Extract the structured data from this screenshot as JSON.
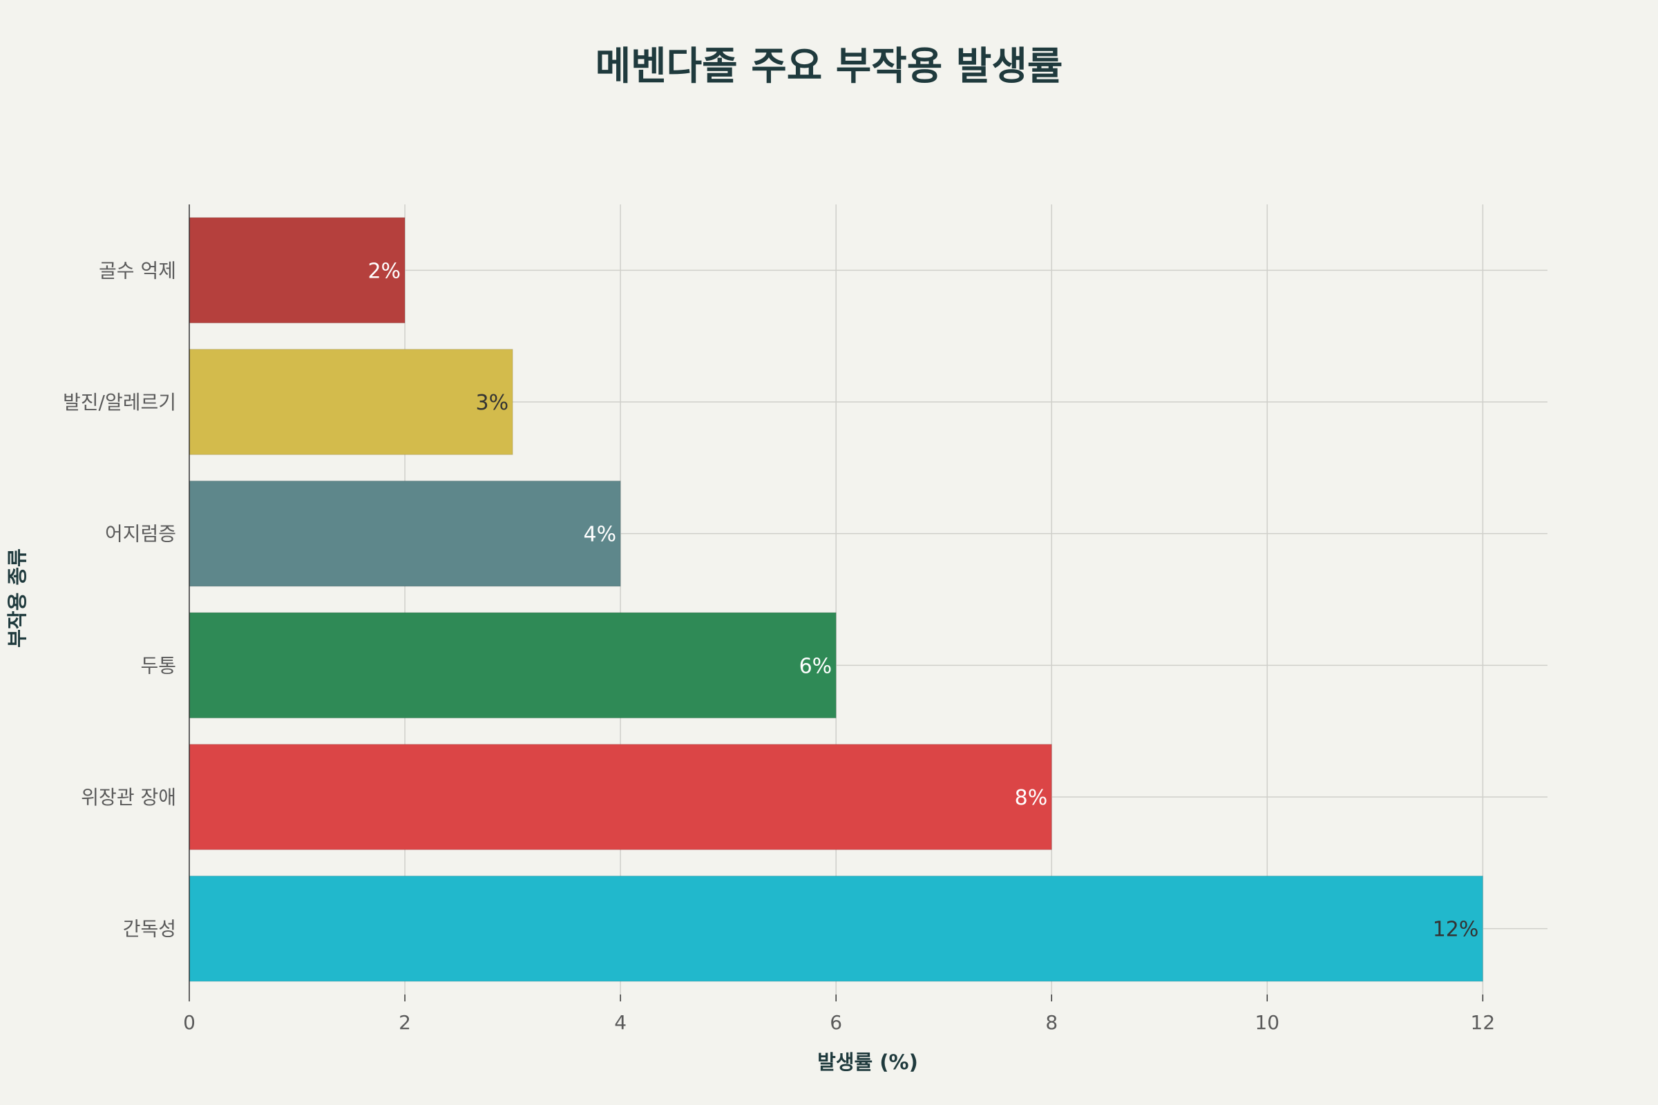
{
  "chart_data": {
    "type": "bar",
    "orientation": "horizontal",
    "title": "메벤다졸 주요 부작용 발생률",
    "xlabel": "발생률 (%)",
    "ylabel": "부작용 종류",
    "categories": [
      "골수 억제",
      "발진/알레르기",
      "어지럼증",
      "두통",
      "위장관 장애",
      "간독성"
    ],
    "values": [
      2,
      3,
      4,
      6,
      8,
      12
    ],
    "data_labels": [
      "2%",
      "3%",
      "4%",
      "6%",
      "8%",
      "12%"
    ],
    "colors": [
      "#b5403d",
      "#d3bb4c",
      "#5e878b",
      "#2f8a56",
      "#db4546",
      "#21b8cc"
    ],
    "label_colors": [
      "#ffffff",
      "#333333",
      "#ffffff",
      "#ffffff",
      "#ffffff",
      "#333333"
    ],
    "xlim": [
      0,
      12.6
    ],
    "xticks": [
      0,
      2,
      4,
      6,
      8,
      10,
      12
    ],
    "xtick_labels": [
      "0",
      "2",
      "4",
      "6",
      "8",
      "10",
      "12"
    ],
    "grid": true,
    "legend": false
  }
}
